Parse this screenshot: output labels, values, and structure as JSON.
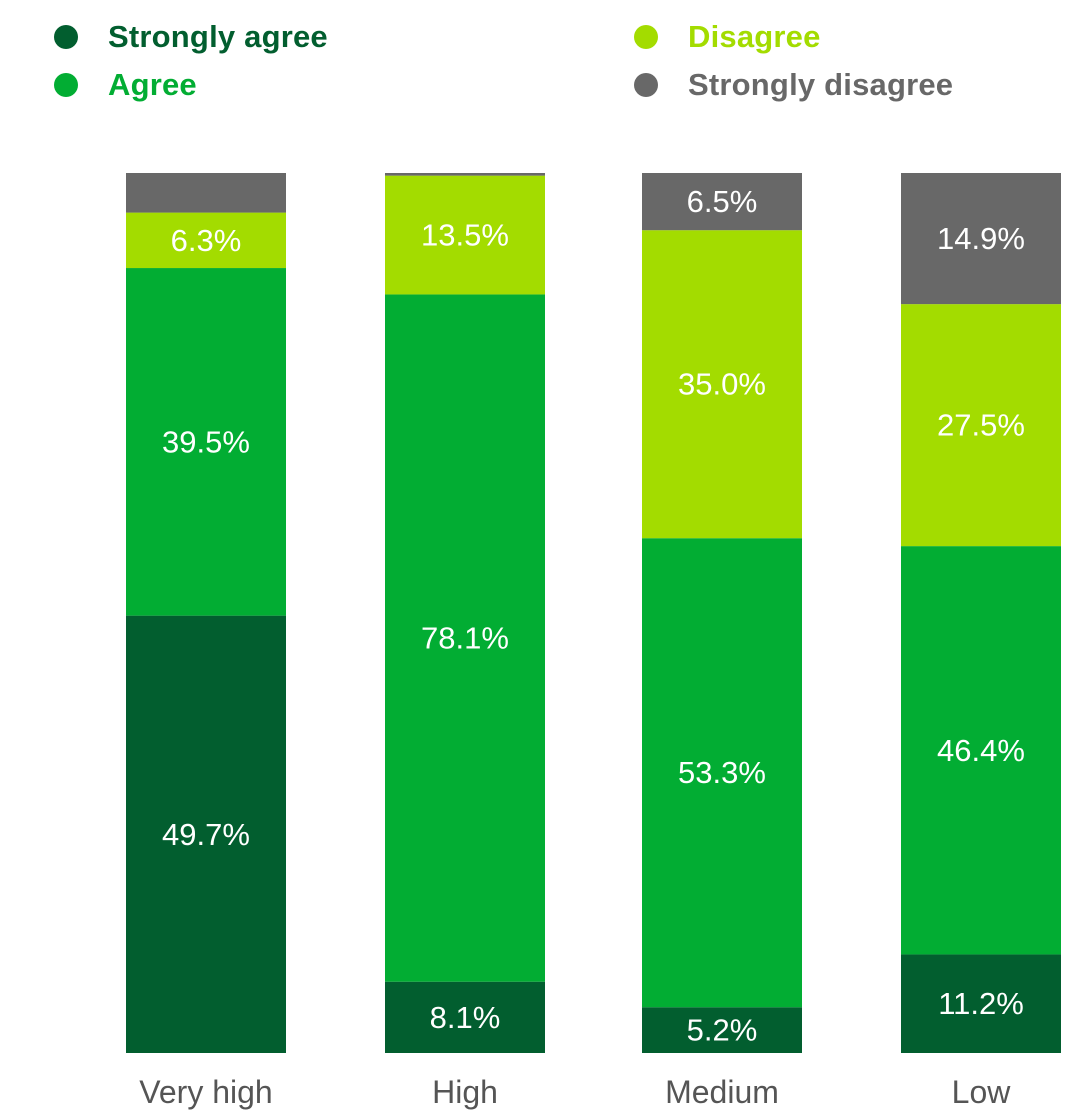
{
  "chart_data": {
    "type": "bar",
    "stacked": true,
    "categories": [
      "Very high",
      "High",
      "Medium",
      "Low"
    ],
    "ylim": [
      0,
      100
    ],
    "legend_position": "top",
    "series": [
      {
        "name": "Strongly agree",
        "color": "#025e2f",
        "values": [
          49.7,
          8.1,
          5.2,
          11.2
        ],
        "labels": [
          "49.7%",
          "8.1%",
          "5.2%",
          "11.2%"
        ]
      },
      {
        "name": "Agree",
        "color": "#02ad33",
        "values": [
          39.5,
          78.1,
          53.3,
          46.4
        ],
        "labels": [
          "39.5%",
          "78.1%",
          "53.3%",
          "46.4%"
        ]
      },
      {
        "name": "Disagree",
        "color": "#a3dc00",
        "values": [
          6.3,
          13.5,
          35.0,
          27.5
        ],
        "labels": [
          "6.3%",
          "13.5%",
          "35.0%",
          "27.5%"
        ]
      },
      {
        "name": "Strongly disagree",
        "color": "#686868",
        "values": [
          4.5,
          0.3,
          6.5,
          14.9
        ],
        "labels": [
          "",
          "",
          "6.5%",
          "14.9%"
        ]
      }
    ]
  }
}
